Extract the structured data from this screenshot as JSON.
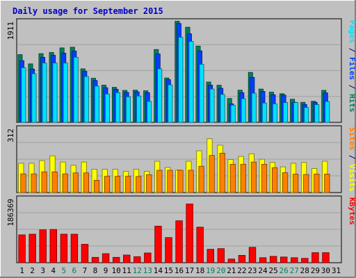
{
  "chart_data": {
    "type": "bar",
    "title": "Daily usage for September 2015",
    "colors": {
      "background": "#c0c0c0",
      "panel": "#c0c0c0",
      "grid": "#a0a0a0",
      "hits": "#00805c",
      "files": "#0040ff",
      "pages": "#00e0ff",
      "visits": "#ffff00",
      "sites": "#ff8000",
      "kbytes": "#ff0000",
      "weekend_label": "#00805c",
      "weekday_label": "#000000"
    },
    "categories": [
      "1",
      "2",
      "3",
      "4",
      "5",
      "6",
      "7",
      "8",
      "9",
      "10",
      "11",
      "12",
      "13",
      "14",
      "15",
      "16",
      "17",
      "18",
      "19",
      "20",
      "21",
      "22",
      "23",
      "24",
      "25",
      "26",
      "27",
      "28",
      "29",
      "30",
      "31"
    ],
    "weekend_days": [
      "5",
      "6",
      "12",
      "13",
      "19",
      "20",
      "26",
      "27"
    ],
    "top_panel": {
      "max_label": "1911",
      "ymax": 1911,
      "right_labels": [
        {
          "text": "Pages",
          "color": "#00e0ff"
        },
        {
          "text": " / ",
          "color": "#000080"
        },
        {
          "text": "Files",
          "color": "#0040ff"
        },
        {
          "text": " / ",
          "color": "#000080"
        },
        {
          "text": "Hits",
          "color": "#00805c"
        }
      ],
      "series": [
        {
          "name": "Hits",
          "values": [
            1302,
            1124,
            1321,
            1343,
            1431,
            1444,
            1029,
            847,
            715,
            673,
            614,
            618,
            607,
            1400,
            853,
            1944,
            1829,
            1466,
            775,
            713,
            458,
            618,
            960,
            640,
            580,
            550,
            444,
            385,
            405,
            615,
            0
          ]
        },
        {
          "name": "Files",
          "values": [
            1185,
            1025,
            1250,
            1290,
            1330,
            1370,
            982,
            805,
            665,
            635,
            575,
            585,
            570,
            1315,
            820,
            1900,
            1702,
            1375,
            715,
            655,
            355,
            570,
            865,
            595,
            530,
            525,
            385,
            345,
            385,
            565,
            0
          ]
        },
        {
          "name": "Pages",
          "values": [
            1050,
            935,
            1140,
            1140,
            1140,
            1250,
            881,
            695,
            545,
            570,
            490,
            505,
            402,
            1028,
            720,
            1635,
            1556,
            1115,
            640,
            536,
            330,
            455,
            560,
            370,
            355,
            380,
            380,
            285,
            340,
            400,
            0
          ]
        }
      ]
    },
    "middle_panel": {
      "max_label": "312",
      "ymax": 312,
      "right_labels": [
        {
          "text": "Sites",
          "color": "#ff8000"
        },
        {
          "text": " / ",
          "color": "#000080"
        },
        {
          "text": "Visits",
          "color": "#ffff00"
        }
      ],
      "series": [
        {
          "name": "Visits",
          "values": [
            146,
            146,
            159,
            183,
            152,
            136,
            152,
            116,
            116,
            116,
            106,
            116,
            106,
            156,
            125,
            112,
            156,
            208,
            268,
            236,
            165,
            180,
            193,
            166,
            150,
            128,
            146,
            150,
            120,
            156,
            0
          ]
        },
        {
          "name": "Sites",
          "values": [
            93,
            93,
            103,
            103,
            93,
            98,
            98,
            61,
            81,
            81,
            81,
            80,
            89,
            111,
            111,
            111,
            111,
            131,
            185,
            196,
            141,
            141,
            152,
            141,
            124,
            99,
            92,
            90,
            92,
            92,
            0
          ]
        }
      ]
    },
    "bottom_panel": {
      "max_label": "186369",
      "ymax": 186369,
      "right_labels": [
        {
          "text": "KBytes",
          "color": "#ff0000"
        }
      ],
      "series": [
        {
          "name": "KBytes",
          "values": [
            83000,
            85000,
            98000,
            99000,
            85000,
            85000,
            55000,
            16000,
            27000,
            16000,
            23000,
            18000,
            29000,
            109000,
            75000,
            125000,
            175000,
            106000,
            40000,
            42000,
            11000,
            22000,
            46000,
            15000,
            19000,
            17000,
            15000,
            13000,
            30000,
            30000,
            0
          ]
        }
      ]
    }
  }
}
